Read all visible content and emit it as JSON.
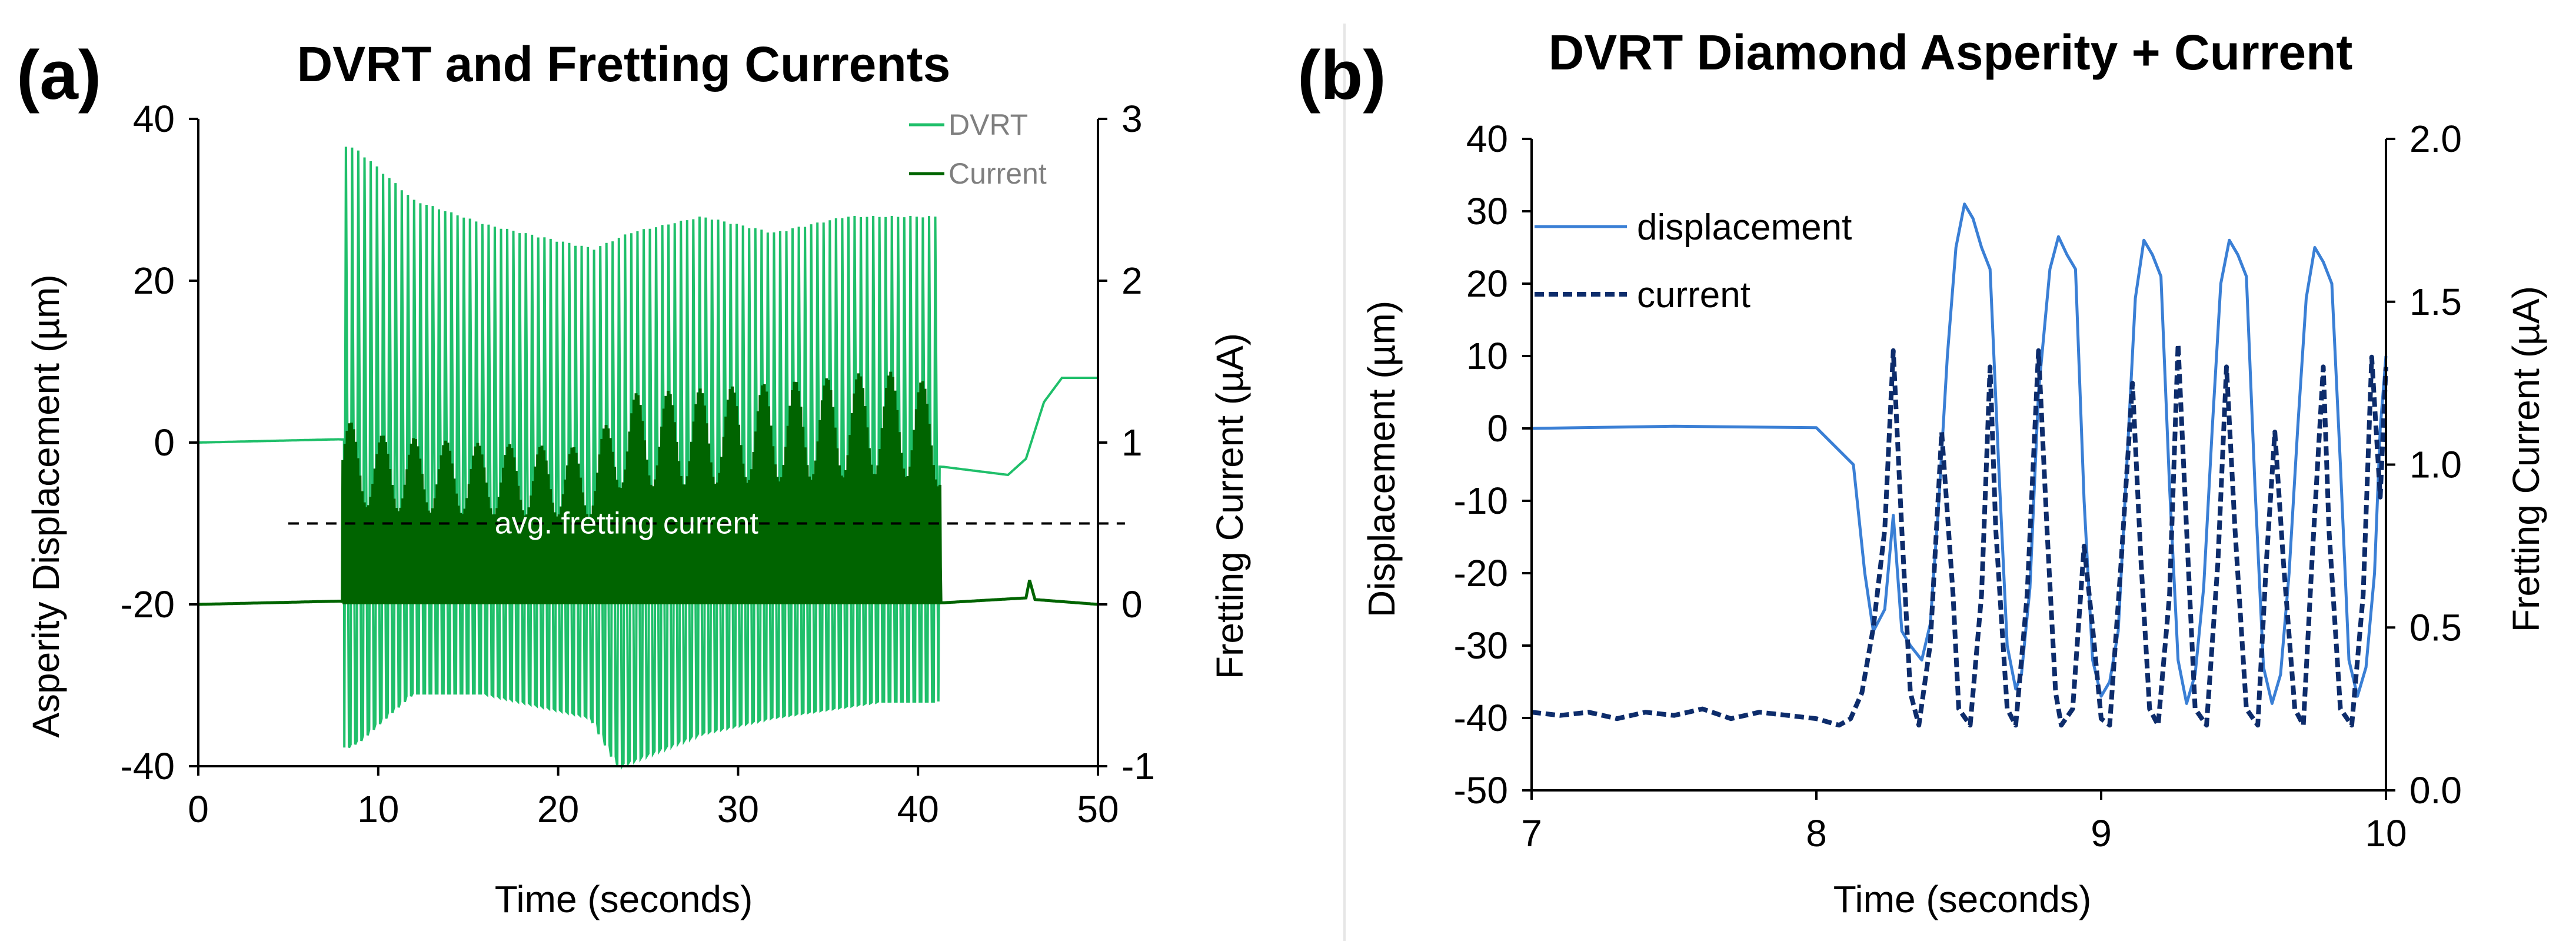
{
  "chart_data": [
    {
      "type": "line",
      "panel_label": "(a)",
      "title": "DVRT and Fretting Currents",
      "xlabel": "Time (seconds)",
      "ylabel": "Asperity Displacement (µm)",
      "y2label": "Fretting Current (µA)",
      "xlim": [
        0,
        50
      ],
      "ylim": [
        -40,
        40
      ],
      "y2lim": [
        -1,
        3
      ],
      "xticks": [
        "0",
        "10",
        "20",
        "30",
        "40",
        "50"
      ],
      "yticks": [
        "-40",
        "-20",
        "0",
        "20",
        "40"
      ],
      "y2ticks": [
        "-1",
        "0",
        "1",
        "2",
        "3"
      ],
      "grid": false,
      "legend_position": "top-right",
      "series": [
        {
          "name": "DVRT",
          "axis": "left",
          "color": "#1fbf6a",
          "baseline_points": {
            "x": [
              0,
              7.8,
              41.4,
              45,
              46,
              47,
              48,
              50
            ],
            "y": [
              0,
              0.4,
              -3,
              -4,
              -2,
              5,
              8,
              8
            ]
          },
          "oscillation": {
            "start": 8.1,
            "end": 41.2,
            "cycles": 96,
            "upper_envelope": {
              "x": [
                8.1,
                9,
                12,
                16,
                22,
                24,
                28,
                32,
                36,
                41
              ],
              "y": [
                37,
                36,
                30,
                27,
                24,
                26,
                28,
                26,
                28,
                28
              ]
            },
            "lower_envelope": {
              "x": [
                8.1,
                9,
                12,
                16,
                22,
                23.5,
                28,
                32,
                38,
                41
              ],
              "y": [
                -38,
                -37,
                -31,
                -31,
                -34,
                -40,
                -36,
                -34,
                -32,
                -32
              ]
            }
          }
        },
        {
          "name": "Current",
          "axis": "right",
          "color": "#006400",
          "baseline_points": {
            "x": [
              0,
              7.8,
              41.4,
              46,
              46.2,
              46.5,
              50
            ],
            "y": [
              0,
              0.02,
              0.01,
              0.04,
              0.15,
              0.03,
              0
            ]
          },
          "oscillation": {
            "start": 8.0,
            "end": 41.3,
            "cycles": 280,
            "upper_envelope": {
              "x": [
                8,
                10,
                15,
                22,
                23.5,
                30,
                35,
                38,
                40,
                41.3
              ],
              "y": [
                1.15,
                1.05,
                1.0,
                0.97,
                1.3,
                1.35,
                1.4,
                1.45,
                1.4,
                1.3
              ]
            },
            "lower_envelope_value": 0.01
          }
        }
      ],
      "annotations": [
        {
          "text": "avg. fretting current",
          "axis": "left",
          "y": -10,
          "x_from": 5,
          "x_to": 51.5,
          "line_style": "dashed"
        }
      ]
    },
    {
      "type": "line",
      "panel_label": "(b)",
      "title": "DVRT Diamond Asperity + Current",
      "xlabel": "Time (seconds)",
      "ylabel": "Displacement (µm)",
      "y2label": "Fretting Current (µA)",
      "xlim": [
        7,
        10
      ],
      "ylim": [
        -50,
        40
      ],
      "y2lim": [
        0.0,
        2.0
      ],
      "xticks": [
        "7",
        "8",
        "9",
        "10"
      ],
      "yticks": [
        "-50",
        "-40",
        "-30",
        "-20",
        "-10",
        "0",
        "10",
        "20",
        "30",
        "40"
      ],
      "y2ticks": [
        "0.0",
        "0.5",
        "1.0",
        "1.5",
        "2.0"
      ],
      "grid": false,
      "legend_position": "top-left",
      "series": [
        {
          "name": "displacement",
          "axis": "left",
          "color": "#3a7fd5",
          "line_style": "solid",
          "x": [
            7.0,
            7.5,
            8.0,
            8.13,
            8.17,
            8.2,
            8.24,
            8.27,
            8.3,
            8.33,
            8.37,
            8.4,
            8.43,
            8.46,
            8.49,
            8.52,
            8.55,
            8.58,
            8.61,
            8.64,
            8.67,
            8.7,
            8.72,
            8.75,
            8.78,
            8.82,
            8.85,
            8.88,
            8.91,
            8.94,
            8.97,
            9.0,
            9.03,
            9.06,
            9.09,
            9.12,
            9.15,
            9.18,
            9.21,
            9.24,
            9.27,
            9.3,
            9.33,
            9.36,
            9.39,
            9.42,
            9.45,
            9.48,
            9.51,
            9.54,
            9.57,
            9.6,
            9.63,
            9.66,
            9.69,
            9.72,
            9.75,
            9.78,
            9.81,
            9.84,
            9.87,
            9.9,
            9.93,
            9.96,
            9.98,
            10.0
          ],
          "y": [
            0,
            0.3,
            0.1,
            -5,
            -20,
            -28,
            -25,
            -12,
            -28,
            -30,
            -32,
            -27,
            -10,
            10,
            25,
            31,
            29,
            25,
            22,
            -5,
            -30,
            -36,
            -34,
            -22,
            5,
            22,
            26.5,
            24,
            22,
            -10,
            -32,
            -37,
            -35,
            -28,
            -5,
            18,
            26,
            24,
            21,
            -8,
            -32,
            -38,
            -34,
            -22,
            0,
            20,
            26,
            24,
            21,
            -8,
            -33,
            -38,
            -34,
            -20,
            0,
            18,
            25,
            23,
            20,
            -5,
            -32,
            -37,
            -33,
            -20,
            0,
            10
          ]
        },
        {
          "name": "current",
          "axis": "right",
          "color": "#0d2c6b",
          "line_style": "dashed",
          "x": [
            7.0,
            7.1,
            7.2,
            7.3,
            7.4,
            7.5,
            7.6,
            7.7,
            7.8,
            7.9,
            8.0,
            8.08,
            8.12,
            8.16,
            8.2,
            8.24,
            8.27,
            8.3,
            8.33,
            8.36,
            8.4,
            8.44,
            8.48,
            8.5,
            8.54,
            8.58,
            8.61,
            8.63,
            8.67,
            8.7,
            8.74,
            8.78,
            8.81,
            8.84,
            8.86,
            8.9,
            8.94,
            8.97,
            9.0,
            9.03,
            9.07,
            9.11,
            9.14,
            9.17,
            9.2,
            9.24,
            9.27,
            9.3,
            9.33,
            9.37,
            9.41,
            9.44,
            9.47,
            9.51,
            9.55,
            9.58,
            9.61,
            9.64,
            9.68,
            9.71,
            9.74,
            9.78,
            9.8,
            9.84,
            9.88,
            9.92,
            9.95,
            9.98,
            10.0
          ],
          "y": [
            0.24,
            0.23,
            0.24,
            0.22,
            0.24,
            0.23,
            0.25,
            0.22,
            0.24,
            0.23,
            0.22,
            0.2,
            0.22,
            0.3,
            0.5,
            0.8,
            1.35,
            0.8,
            0.3,
            0.2,
            0.45,
            1.1,
            0.6,
            0.25,
            0.2,
            0.6,
            1.3,
            0.8,
            0.25,
            0.2,
            0.6,
            1.35,
            0.8,
            0.3,
            0.2,
            0.25,
            0.75,
            0.5,
            0.22,
            0.2,
            0.7,
            1.25,
            0.7,
            0.25,
            0.2,
            0.6,
            1.37,
            0.8,
            0.25,
            0.2,
            0.7,
            1.3,
            0.8,
            0.25,
            0.2,
            0.7,
            1.1,
            0.7,
            0.25,
            0.2,
            0.7,
            1.3,
            0.8,
            0.25,
            0.2,
            0.6,
            1.33,
            0.9,
            1.3
          ]
        }
      ]
    }
  ]
}
